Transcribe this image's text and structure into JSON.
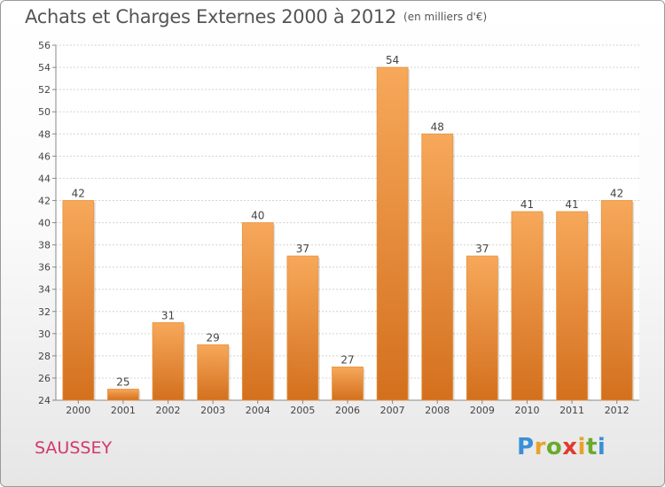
{
  "chart_data": {
    "type": "bar",
    "title": "Achats et Charges Externes 2000 à 2012",
    "subtitle": "(en milliers d'€)",
    "categories": [
      "2000",
      "2001",
      "2002",
      "2003",
      "2004",
      "2005",
      "2006",
      "2007",
      "2008",
      "2009",
      "2010",
      "2011",
      "2012"
    ],
    "values": [
      42,
      25,
      31,
      29,
      40,
      37,
      27,
      54,
      48,
      37,
      41,
      41,
      42
    ],
    "ylim": [
      24,
      56
    ],
    "yticks": [
      24,
      26,
      28,
      30,
      32,
      34,
      36,
      38,
      40,
      42,
      44,
      46,
      48,
      50,
      52,
      54,
      56
    ],
    "grid": true,
    "bar_color_top": "#f7a85a",
    "bar_color_bottom": "#d3701e"
  },
  "footer": {
    "location": "SAUSSEY",
    "logo": "Proxiti"
  }
}
